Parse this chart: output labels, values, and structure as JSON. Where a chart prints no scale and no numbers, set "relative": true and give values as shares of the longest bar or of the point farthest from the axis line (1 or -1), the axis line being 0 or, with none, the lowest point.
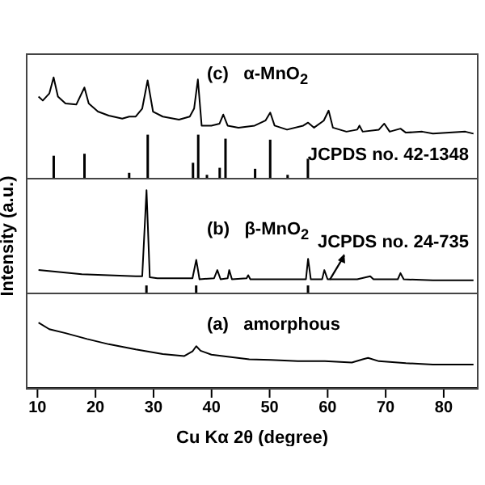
{
  "chart_data": [
    {
      "type": "line",
      "relative": true,
      "xlim": [
        8,
        86
      ],
      "xticks": [
        10,
        20,
        30,
        40,
        50,
        60,
        70,
        80
      ],
      "tick_labels": false,
      "marker": "none",
      "annotations": [
        "(c)   α-MnO$_{2}$"
      ],
      "series": [
        {
          "color": "#000000",
          "x": [
            10.18,
            10.92,
            12.04,
            12.78,
            13.53,
            14.83,
            16.69,
            18.09,
            18.83,
            20.42,
            22.28,
            24.61,
            25.82,
            26.93,
            28.05,
            28.98,
            29.91,
            31.59,
            34.38,
            36.24,
            36.99,
            37.64,
            38.29,
            39.97,
            41.37,
            42.02,
            42.77,
            44.63,
            47.42,
            49.28,
            50.11,
            50.86,
            53.0,
            55.79,
            56.63,
            57.66,
            59.33,
            60.17,
            60.91,
            63.24,
            65.1,
            65.48,
            66.04,
            68.83,
            69.76,
            70.69,
            72.55,
            73.48,
            76.28,
            78.14,
            80.93,
            83.73,
            85.13
          ],
          "values": [
            0.81,
            0.77,
            0.84,
            1.0,
            0.81,
            0.74,
            0.73,
            0.9,
            0.74,
            0.66,
            0.62,
            0.59,
            0.61,
            0.61,
            0.69,
            0.97,
            0.66,
            0.61,
            0.58,
            0.61,
            0.69,
            0.98,
            0.52,
            0.52,
            0.54,
            0.63,
            0.52,
            0.5,
            0.52,
            0.57,
            0.65,
            0.52,
            0.48,
            0.52,
            0.55,
            0.5,
            0.57,
            0.67,
            0.5,
            0.46,
            0.48,
            0.52,
            0.46,
            0.48,
            0.54,
            0.46,
            0.49,
            0.45,
            0.46,
            0.44,
            0.45,
            0.46,
            0.44
          ]
        },
        {
          "type": "bar",
          "name": "JCPDS no. 42-1348",
          "color": "#000000",
          "x": [
            12.8,
            18.1,
            25.8,
            29.0,
            36.8,
            37.7,
            39.2,
            41.4,
            42.4,
            47.5,
            50.1,
            53.1,
            56.6
          ],
          "values": [
            0.22,
            0.24,
            0.05,
            0.43,
            0.15,
            0.43,
            0.03,
            0.1,
            0.39,
            0.09,
            0.38,
            0.03,
            0.19
          ]
        }
      ]
    },
    {
      "type": "line",
      "relative": true,
      "xlim": [
        8,
        86
      ],
      "xticks": [
        10,
        20,
        30,
        40,
        50,
        60,
        70,
        80
      ],
      "tick_labels": false,
      "marker": "none",
      "ylabel": "Intensity (a.u.)",
      "annotations": [
        "(b)   β-MnO$_{2}$"
      ],
      "series": [
        {
          "color": "#000000",
          "x": [
            10.18,
            17.63,
            26.93,
            28.05,
            28.79,
            29.35,
            30.66,
            36.71,
            37.36,
            37.92,
            40.43,
            40.99,
            41.55,
            42.77,
            43.04,
            43.51,
            46.03,
            46.31,
            46.68,
            54.87,
            56.26,
            56.63,
            57.1,
            59.05,
            59.43,
            59.99,
            63.24,
            65.1,
            67.34,
            67.9,
            72.09,
            72.55,
            73.11,
            78.14,
            85.13
          ],
          "values": [
            0.22,
            0.18,
            0.16,
            0.16,
            1.0,
            0.15,
            0.14,
            0.14,
            0.32,
            0.13,
            0.14,
            0.22,
            0.13,
            0.14,
            0.22,
            0.13,
            0.14,
            0.17,
            0.13,
            0.13,
            0.13,
            0.33,
            0.13,
            0.13,
            0.22,
            0.13,
            0.13,
            0.13,
            0.16,
            0.13,
            0.13,
            0.19,
            0.13,
            0.12,
            0.12
          ]
        },
        {
          "type": "bar",
          "name": "JCPDS no. 24-735",
          "color": "#000000",
          "x": [
            28.79,
            37.36,
            56.63
          ],
          "values": [
            0.07,
            0.07,
            0.07
          ]
        }
      ]
    },
    {
      "type": "line",
      "relative": true,
      "xlim": [
        8,
        86
      ],
      "xticks": [
        10,
        20,
        30,
        40,
        50,
        60,
        70,
        80
      ],
      "tick_labels": "x",
      "marker": "none",
      "xlabel": "Cu Kα 2θ (degree)",
      "annotations": [
        "(a)   amorphous"
      ],
      "series": [
        {
          "color": "#000000",
          "x": [
            10.18,
            12.04,
            14.83,
            18.55,
            22.28,
            26.93,
            31.59,
            35.31,
            36.71,
            37.36,
            38.1,
            39.97,
            42.77,
            46.49,
            50.21,
            54.87,
            59.52,
            64.17,
            66.04,
            66.97,
            68.83,
            73.48,
            78.14,
            81.86,
            85.13
          ],
          "values": [
            1.0,
            0.9,
            0.84,
            0.75,
            0.67,
            0.59,
            0.52,
            0.49,
            0.56,
            0.64,
            0.57,
            0.51,
            0.48,
            0.44,
            0.43,
            0.41,
            0.41,
            0.39,
            0.44,
            0.46,
            0.41,
            0.38,
            0.36,
            0.36,
            0.36
          ]
        }
      ]
    }
  ]
}
